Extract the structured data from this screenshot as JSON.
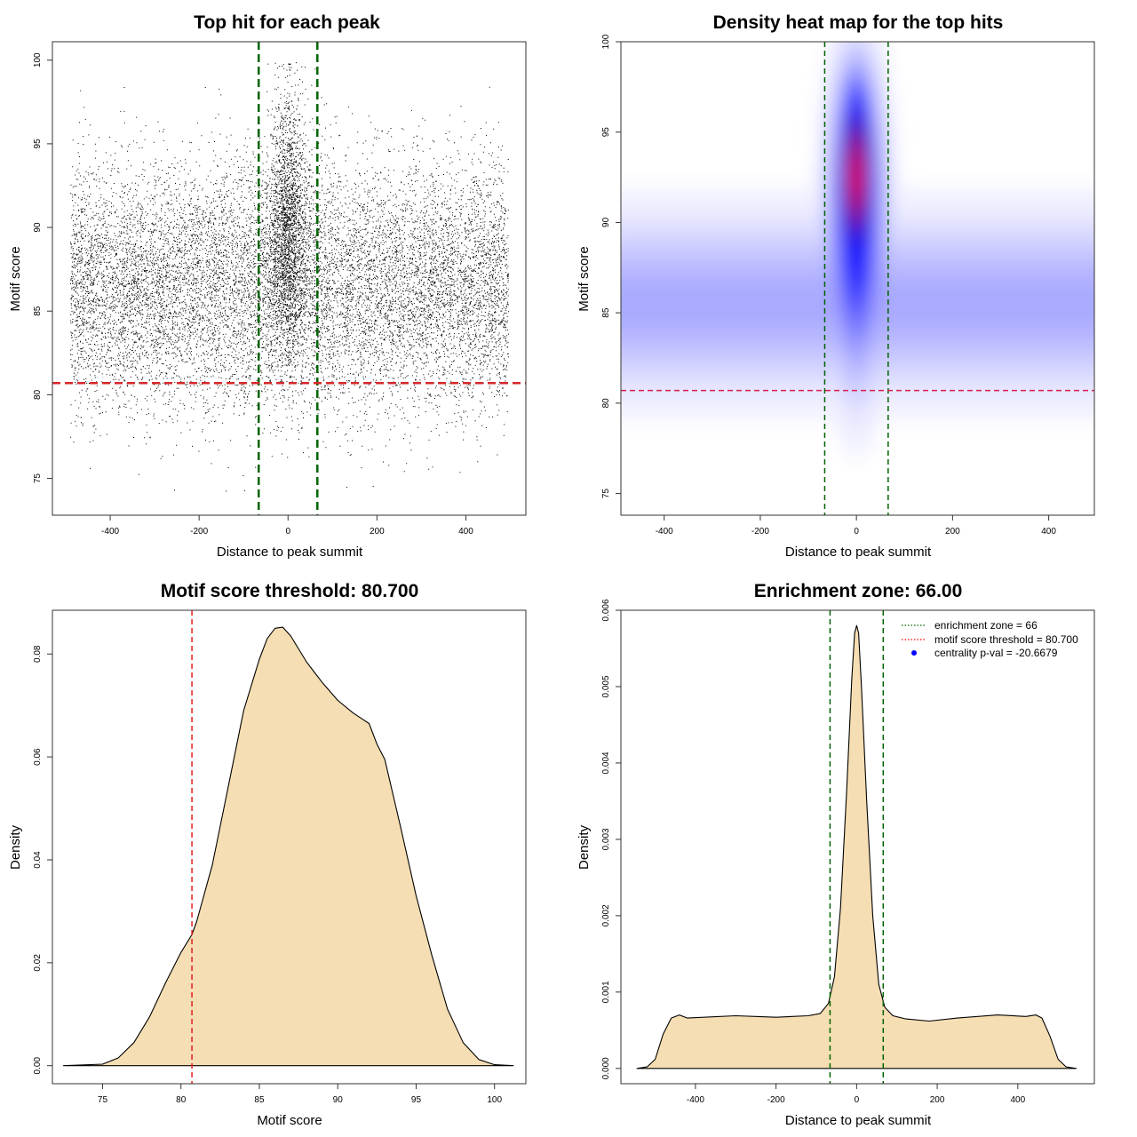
{
  "chart_data": [
    {
      "type": "scatter",
      "title": "Top hit for each peak",
      "xlabel": "Distance to peak summit",
      "ylabel": "Motif score",
      "xlim": [
        -530,
        535
      ],
      "ylim": [
        72.8,
        101.1
      ],
      "xticks": [
        -400,
        -200,
        0,
        200,
        400
      ],
      "yticks": [
        75,
        80,
        85,
        90,
        95,
        100
      ],
      "xtick_labels": [
        "-400",
        "-200",
        "0",
        "200",
        "400"
      ],
      "ytick_labels": [
        "75",
        "80",
        "85",
        "90",
        "95",
        "100"
      ],
      "enrichment_zone": [
        -66,
        66
      ],
      "score_threshold": 80.7,
      "point_summary": {
        "background": {
          "x_range": [
            -490,
            495
          ],
          "score_mean": 86.5,
          "score_sd": 3.6,
          "approx_points": 26000
        },
        "central_cluster": {
          "x_center": 0,
          "x_sd": 18,
          "score_mean": 90.0,
          "score_sd": 3.8,
          "score_max": 99.9,
          "approx_points": 15000
        }
      }
    },
    {
      "type": "heatmap",
      "title": "Density heat map for the top hits",
      "xlabel": "Distance to peak summit",
      "ylabel": "Motif score",
      "xlim": [
        -490,
        495
      ],
      "ylim": [
        73.8,
        100
      ],
      "xticks": [
        -400,
        -200,
        0,
        200,
        400
      ],
      "yticks": [
        75,
        80,
        85,
        90,
        95,
        100
      ],
      "xtick_labels": [
        "-400",
        "-200",
        "0",
        "200",
        "400"
      ],
      "ytick_labels": [
        "75",
        "80",
        "85",
        "90",
        "95",
        "100"
      ],
      "enrichment_zone": [
        -66,
        66
      ],
      "score_threshold": 80.7,
      "colors": [
        "#ffffff",
        "#0000ff",
        "#ff0000"
      ],
      "density_peak": {
        "x": 0,
        "score": 92.5
      },
      "background_band": {
        "score_center": 85.5,
        "x_range": [
          -490,
          495
        ]
      }
    },
    {
      "type": "area",
      "title": "Motif score threshold: 80.700",
      "xlabel": "Motif score",
      "ylabel": "Density",
      "xlim": [
        71.8,
        102
      ],
      "ylim": [
        -0.0035,
        0.0885
      ],
      "xticks": [
        75,
        80,
        85,
        90,
        95,
        100
      ],
      "yticks": [
        0.0,
        0.02,
        0.04,
        0.06,
        0.08
      ],
      "xtick_labels": [
        "75",
        "80",
        "85",
        "90",
        "95",
        "100"
      ],
      "ytick_labels": [
        "0.00",
        "0.02",
        "0.04",
        "0.06",
        "0.08"
      ],
      "threshold": 80.7,
      "fill_color": "#f5deb3",
      "x": [
        72.5,
        75,
        76,
        77,
        78,
        79,
        80,
        80.7,
        81,
        82,
        83,
        84,
        85,
        85.5,
        86,
        86.5,
        87,
        88,
        88.5,
        89,
        90,
        91,
        91.5,
        92,
        92.5,
        93,
        94,
        95,
        96,
        97,
        98,
        99,
        100,
        101.2
      ],
      "y": [
        0.0,
        0.0003,
        0.0015,
        0.0045,
        0.0095,
        0.016,
        0.022,
        0.0255,
        0.028,
        0.039,
        0.054,
        0.069,
        0.079,
        0.083,
        0.085,
        0.0852,
        0.0835,
        0.0785,
        0.0765,
        0.0745,
        0.071,
        0.0685,
        0.0675,
        0.0665,
        0.0625,
        0.0595,
        0.0465,
        0.033,
        0.0215,
        0.011,
        0.0045,
        0.0012,
        0.0002,
        0.0
      ]
    },
    {
      "type": "area",
      "title": "Enrichment zone: 66.00",
      "xlabel": "Distance to peak summit",
      "ylabel": "Density",
      "xlim": [
        -585,
        590
      ],
      "ylim": [
        -0.0002,
        0.006
      ],
      "xticks": [
        -400,
        -200,
        0,
        200,
        400
      ],
      "yticks": [
        0.0,
        0.001,
        0.002,
        0.003,
        0.004,
        0.005,
        0.006
      ],
      "xtick_labels": [
        "-400",
        "-200",
        "0",
        "200",
        "400"
      ],
      "ytick_labels": [
        "0.000",
        "0.001",
        "0.002",
        "0.003",
        "0.004",
        "0.005",
        "0.006"
      ],
      "enrichment_zone": [
        -66,
        66
      ],
      "fill_color": "#f5deb3",
      "x": [
        -545,
        -520,
        -500,
        -480,
        -460,
        -440,
        -420,
        -300,
        -200,
        -120,
        -90,
        -70,
        -55,
        -40,
        -25,
        -12,
        -5,
        0,
        5,
        12,
        25,
        40,
        55,
        70,
        90,
        120,
        180,
        250,
        350,
        420,
        445,
        460,
        480,
        500,
        520,
        545
      ],
      "y": [
        0.0,
        2e-05,
        0.00012,
        0.00045,
        0.00066,
        0.0007,
        0.00066,
        0.00069,
        0.00067,
        0.00069,
        0.00072,
        0.00085,
        0.0012,
        0.0021,
        0.0036,
        0.0051,
        0.0057,
        0.0058,
        0.0057,
        0.005,
        0.0035,
        0.002,
        0.0011,
        0.0008,
        0.00069,
        0.00065,
        0.00062,
        0.00066,
        0.0007,
        0.00068,
        0.0007,
        0.00066,
        0.00042,
        0.00012,
        2e-05,
        0.0
      ],
      "legend": {
        "position": "top-right",
        "entries": [
          {
            "label": "enrichment zone = 66",
            "color": "#006400",
            "kind": "dotted-line"
          },
          {
            "label": "motif score threshold = 80.700",
            "color": "#ff0000",
            "kind": "dotted-line"
          },
          {
            "label": "centrality p-val = -20.6679",
            "color": "#0000ff",
            "kind": "point"
          }
        ]
      }
    }
  ]
}
